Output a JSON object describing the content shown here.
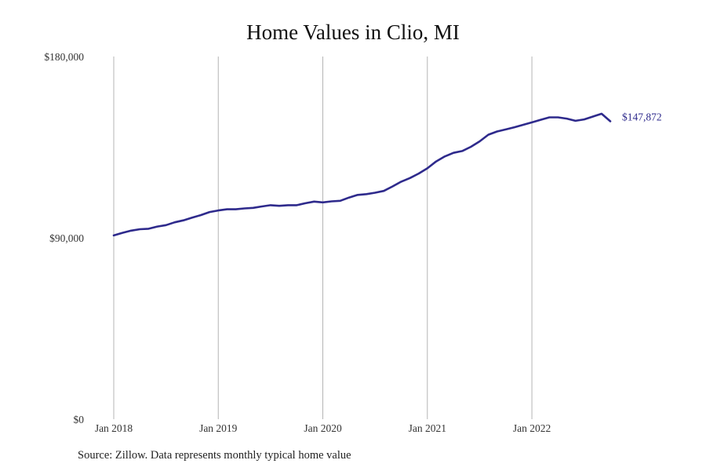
{
  "chart_data": {
    "type": "line",
    "title": "Home Values in Clio, MI",
    "xlabel": "",
    "ylabel": "",
    "ylim": [
      0,
      180000
    ],
    "y_ticks": [
      0,
      90000,
      180000
    ],
    "y_tick_labels": [
      "$0",
      "$90,000",
      "$180,000"
    ],
    "x_ticks": [
      "2018-01",
      "2019-01",
      "2020-01",
      "2021-01",
      "2022-01"
    ],
    "x_tick_labels": [
      "Jan 2018",
      "Jan 2019",
      "Jan 2020",
      "Jan 2021",
      "Jan 2022"
    ],
    "grid": "vertical",
    "line_color": "#2e2a8c",
    "end_label": "$147,872",
    "series": [
      {
        "x": [
          "2018-01",
          "2018-02",
          "2018-03",
          "2018-04",
          "2018-05",
          "2018-06",
          "2018-07",
          "2018-08",
          "2018-09",
          "2018-10",
          "2018-11",
          "2018-12",
          "2019-01",
          "2019-02",
          "2019-03",
          "2019-04",
          "2019-05",
          "2019-06",
          "2019-07",
          "2019-08",
          "2019-09",
          "2019-10",
          "2019-11",
          "2019-12",
          "2020-01",
          "2020-02",
          "2020-03",
          "2020-04",
          "2020-05",
          "2020-06",
          "2020-07",
          "2020-08",
          "2020-09",
          "2020-10",
          "2020-11",
          "2020-12",
          "2021-01",
          "2021-02",
          "2021-03",
          "2021-04",
          "2021-05",
          "2021-06",
          "2021-07",
          "2021-08",
          "2021-09",
          "2021-10",
          "2021-11",
          "2021-12",
          "2022-01",
          "2022-02",
          "2022-03",
          "2022-04",
          "2022-05",
          "2022-06",
          "2022-07",
          "2022-08",
          "2022-09",
          "2022-10"
        ],
        "values": [
          91200,
          92500,
          93600,
          94300,
          94500,
          95600,
          96300,
          97700,
          98700,
          100000,
          101300,
          102800,
          103600,
          104200,
          104200,
          104600,
          104900,
          105600,
          106200,
          105900,
          106200,
          106200,
          107200,
          108000,
          107600,
          108100,
          108400,
          110000,
          111300,
          111700,
          112400,
          113300,
          115500,
          117900,
          119700,
          121900,
          124500,
          127900,
          130400,
          132200,
          133100,
          135200,
          137900,
          141200,
          142800,
          143800,
          144900,
          146100,
          147300,
          148600,
          149800,
          149800,
          149200,
          148100,
          148800,
          150200,
          151600,
          147872
        ]
      }
    ]
  },
  "footer": {
    "source": "Source: Zillow. Data represents monthly typical home value"
  }
}
